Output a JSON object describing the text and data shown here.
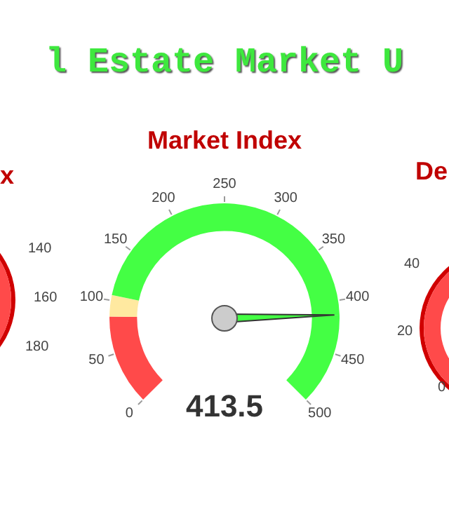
{
  "chart_data": [
    {
      "type": "other",
      "title": "x",
      "annotations": [
        "140",
        "160",
        "180"
      ]
    },
    {
      "type": "donut",
      "title": "Market Index",
      "subtitle": "l Estate Market U",
      "categories": [
        null,
        null,
        null,
        null
      ],
      "values": [
        17,
        4,
        61.7,
        17.3
      ],
      "colors": [
        "#ff4a4a",
        "#ffe9a0",
        "#44ff44",
        "#44ff44"
      ],
      "annotations": [
        "0",
        "50",
        "100",
        "150",
        "200",
        "250",
        "300",
        "350",
        "400",
        "450",
        "500",
        "413.5"
      ],
      "legend": false
    },
    {
      "type": "other",
      "title": "De",
      "annotations": [
        "0",
        "20",
        "40"
      ]
    }
  ]
}
